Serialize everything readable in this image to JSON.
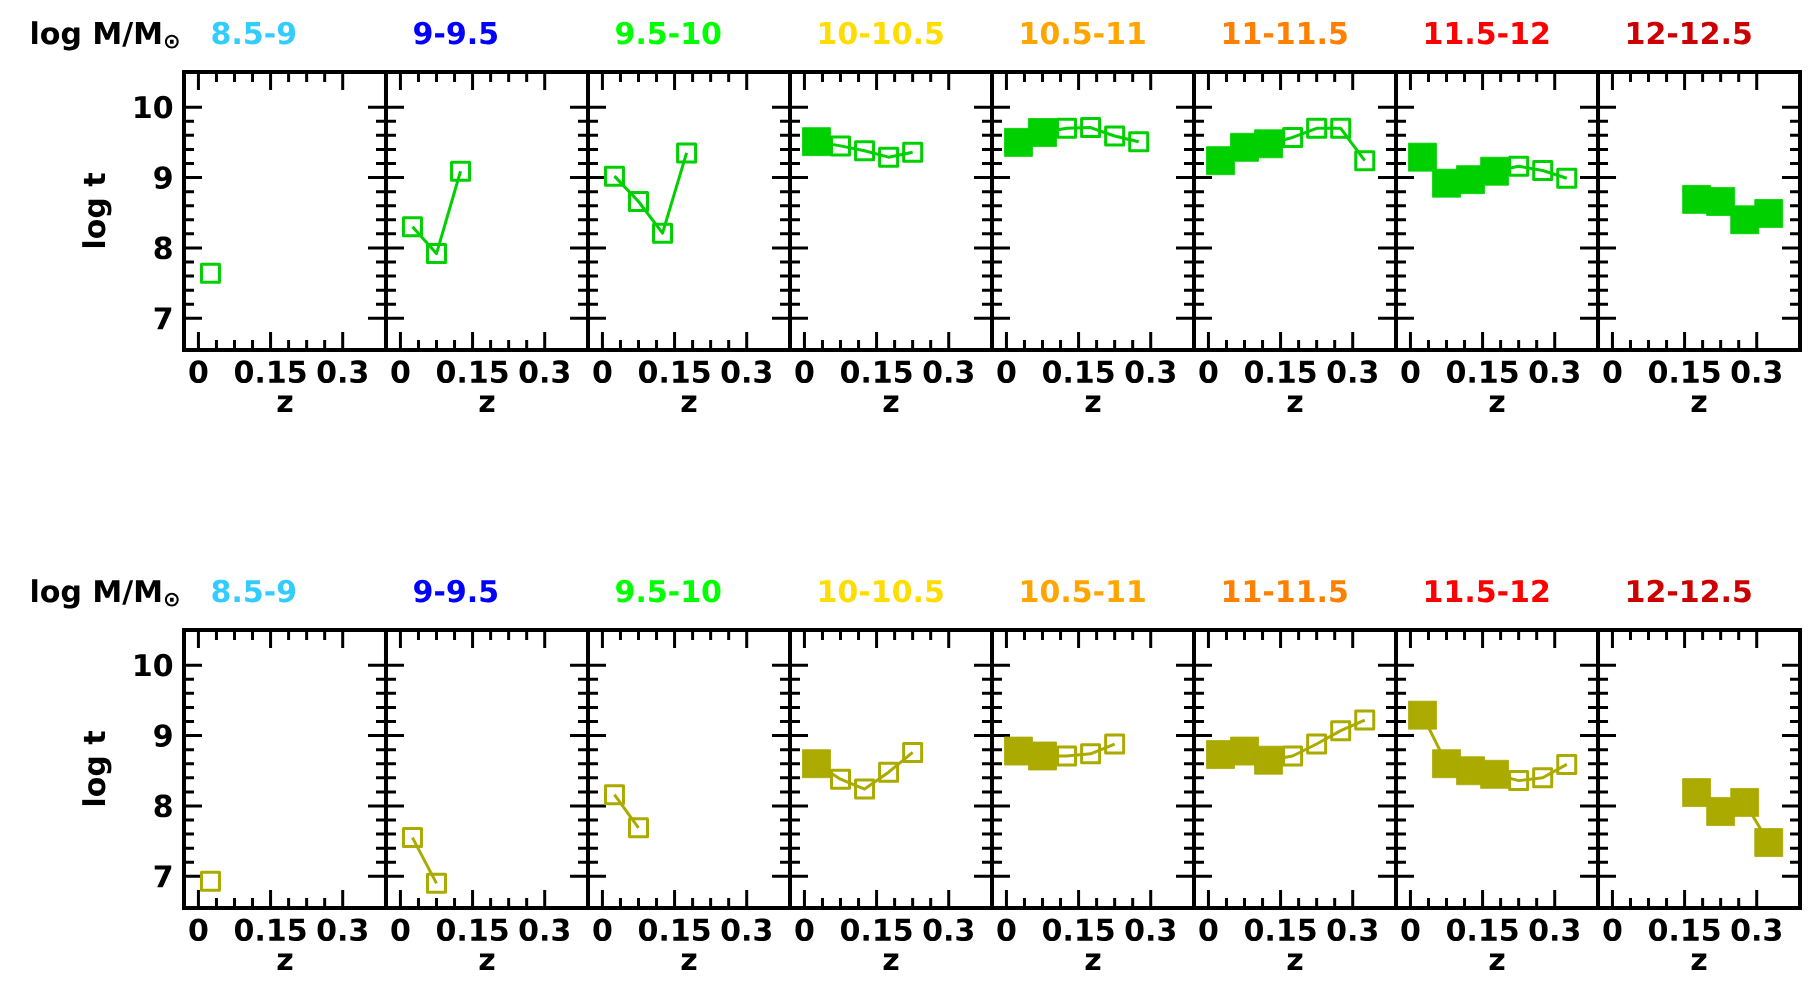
{
  "chart_data": [
    {
      "type": "line",
      "title": "8.5-9",
      "xlabel": "z",
      "ylabel": "log t",
      "annotations": [
        "log M/M$_{⊙}$"
      ],
      "xlim": [
        -0.03,
        0.39
      ],
      "ylim": [
        6.55,
        10.5
      ],
      "xticks": [
        0,
        0.15,
        0.3
      ],
      "yticks": [
        7,
        8,
        9,
        10
      ],
      "series": [
        {
          "marker": "square",
          "color": "#00d000",
          "x": [
            0.025
          ],
          "values": [
            7.64
          ]
        }
      ]
    },
    {
      "type": "line",
      "title": "9-9.5",
      "xlabel": "z",
      "xlim": [
        -0.03,
        0.39
      ],
      "ylim": [
        6.55,
        10.5
      ],
      "xticks": [
        0,
        0.15,
        0.3
      ],
      "yticks": [
        7,
        8,
        9,
        10
      ],
      "tick_labels": "x",
      "series": [
        {
          "marker": "square",
          "color": "#00d000",
          "x": [
            0.025,
            0.075,
            0.125
          ],
          "values": [
            8.3,
            7.92,
            9.09
          ]
        }
      ]
    },
    {
      "type": "line",
      "title": "9.5-10",
      "xlabel": "z",
      "xlim": [
        -0.03,
        0.39
      ],
      "ylim": [
        6.55,
        10.5
      ],
      "xticks": [
        0,
        0.15,
        0.3
      ],
      "yticks": [
        7,
        8,
        9,
        10
      ],
      "tick_labels": "x",
      "series": [
        {
          "marker": "square",
          "color": "#00d000",
          "x": [
            0.025,
            0.075,
            0.125,
            0.175
          ],
          "values": [
            9.02,
            8.66,
            8.21,
            9.35
          ]
        }
      ]
    },
    {
      "type": "line",
      "title": "10-10.5",
      "xlabel": "z",
      "xlim": [
        -0.03,
        0.39
      ],
      "ylim": [
        6.55,
        10.5
      ],
      "xticks": [
        0,
        0.15,
        0.3
      ],
      "yticks": [
        7,
        8,
        9,
        10
      ],
      "tick_labels": "x",
      "series": [
        {
          "marker": "square",
          "color": "#00d000",
          "x": [
            0.025,
            0.075,
            0.125,
            0.175,
            0.225
          ],
          "values": [
            9.51,
            9.45,
            9.38,
            9.29,
            9.36
          ]
        },
        {
          "type": "scatter",
          "marker": "square",
          "color": "#00d000",
          "x": [
            0.025
          ],
          "values": [
            9.51
          ]
        }
      ]
    },
    {
      "type": "line",
      "title": "10.5-11",
      "xlabel": "z",
      "xlim": [
        -0.03,
        0.39
      ],
      "ylim": [
        6.55,
        10.5
      ],
      "xticks": [
        0,
        0.15,
        0.3
      ],
      "yticks": [
        7,
        8,
        9,
        10
      ],
      "tick_labels": "x",
      "series": [
        {
          "marker": "square",
          "color": "#00d000",
          "x": [
            0.025,
            0.075,
            0.125,
            0.175,
            0.225,
            0.275
          ],
          "values": [
            9.5,
            9.64,
            9.7,
            9.71,
            9.59,
            9.51
          ]
        },
        {
          "type": "scatter",
          "marker": "square",
          "color": "#00d000",
          "x": [
            0.025,
            0.075
          ],
          "values": [
            9.5,
            9.64
          ]
        }
      ]
    },
    {
      "type": "line",
      "title": "11-11.5",
      "xlabel": "z",
      "xlim": [
        -0.03,
        0.39
      ],
      "ylim": [
        6.55,
        10.5
      ],
      "xticks": [
        0,
        0.15,
        0.3
      ],
      "yticks": [
        7,
        8,
        9,
        10
      ],
      "tick_labels": "x",
      "series": [
        {
          "marker": "square",
          "color": "#00d000",
          "x": [
            0.025,
            0.075,
            0.125,
            0.175,
            0.225,
            0.275,
            0.325
          ],
          "values": [
            9.24,
            9.43,
            9.48,
            9.57,
            9.7,
            9.7,
            9.24
          ]
        },
        {
          "type": "scatter",
          "marker": "square",
          "color": "#00d000",
          "x": [
            0.025,
            0.075,
            0.125
          ],
          "values": [
            9.24,
            9.43,
            9.48
          ]
        }
      ]
    },
    {
      "type": "line",
      "title": "11.5-12",
      "xlabel": "z",
      "xlim": [
        -0.03,
        0.39
      ],
      "ylim": [
        6.55,
        10.5
      ],
      "xticks": [
        0,
        0.15,
        0.3
      ],
      "yticks": [
        7,
        8,
        9,
        10
      ],
      "tick_labels": "x",
      "series": [
        {
          "marker": "square",
          "color": "#00d000",
          "x": [
            0.025,
            0.075,
            0.125,
            0.175,
            0.225,
            0.275,
            0.325
          ],
          "values": [
            9.29,
            8.92,
            8.97,
            9.09,
            9.16,
            9.1,
            8.99
          ]
        },
        {
          "type": "scatter",
          "marker": "square",
          "color": "#00d000",
          "x": [
            0.025,
            0.075,
            0.125,
            0.175
          ],
          "values": [
            9.29,
            8.92,
            8.97,
            9.09
          ]
        }
      ]
    },
    {
      "type": "line",
      "title": "12-12.5",
      "xlabel": "z",
      "xlim": [
        -0.03,
        0.39
      ],
      "ylim": [
        6.55,
        10.5
      ],
      "xticks": [
        0,
        0.15,
        0.3
      ],
      "yticks": [
        7,
        8,
        9,
        10
      ],
      "tick_labels": "x",
      "series": [
        {
          "type": "scatter",
          "marker": "square",
          "color": "#00d000",
          "x": [
            0.175,
            0.225,
            0.275,
            0.325
          ],
          "values": [
            8.69,
            8.66,
            8.4,
            8.49
          ]
        }
      ]
    },
    {
      "type": "line",
      "title": "8.5-9",
      "xlabel": "z",
      "ylabel": "log t",
      "annotations": [
        "log M/M$_{⊙}$"
      ],
      "xlim": [
        -0.03,
        0.39
      ],
      "ylim": [
        6.55,
        10.5
      ],
      "xticks": [
        0,
        0.15,
        0.3
      ],
      "yticks": [
        7,
        8,
        9,
        10
      ],
      "series": [
        {
          "marker": "square",
          "color": "#aaaa00",
          "x": [
            0.025
          ],
          "values": [
            6.93
          ]
        }
      ]
    },
    {
      "type": "line",
      "title": "9-9.5",
      "xlabel": "z",
      "xlim": [
        -0.03,
        0.39
      ],
      "ylim": [
        6.55,
        10.5
      ],
      "xticks": [
        0,
        0.15,
        0.3
      ],
      "yticks": [
        7,
        8,
        9,
        10
      ],
      "tick_labels": "x",
      "series": [
        {
          "marker": "square",
          "color": "#aaaa00",
          "x": [
            0.025,
            0.075
          ],
          "values": [
            7.55,
            6.9
          ]
        }
      ]
    },
    {
      "type": "line",
      "title": "9.5-10",
      "xlabel": "z",
      "xlim": [
        -0.03,
        0.39
      ],
      "ylim": [
        6.55,
        10.5
      ],
      "xticks": [
        0,
        0.15,
        0.3
      ],
      "yticks": [
        7,
        8,
        9,
        10
      ],
      "tick_labels": "x",
      "series": [
        {
          "marker": "square",
          "color": "#aaaa00",
          "x": [
            0.025,
            0.075
          ],
          "values": [
            8.16,
            7.69
          ]
        }
      ]
    },
    {
      "type": "line",
      "title": "10-10.5",
      "xlabel": "z",
      "xlim": [
        -0.03,
        0.39
      ],
      "ylim": [
        6.55,
        10.5
      ],
      "xticks": [
        0,
        0.15,
        0.3
      ],
      "yticks": [
        7,
        8,
        9,
        10
      ],
      "tick_labels": "x",
      "series": [
        {
          "marker": "square",
          "color": "#aaaa00",
          "x": [
            0.025,
            0.075,
            0.125,
            0.175,
            0.225
          ],
          "values": [
            8.6,
            8.38,
            8.24,
            8.48,
            8.76
          ]
        },
        {
          "type": "scatter",
          "marker": "square",
          "color": "#aaaa00",
          "x": [
            0.025
          ],
          "values": [
            8.6
          ]
        }
      ]
    },
    {
      "type": "line",
      "title": "10.5-11",
      "xlabel": "z",
      "xlim": [
        -0.03,
        0.39
      ],
      "ylim": [
        6.55,
        10.5
      ],
      "xticks": [
        0,
        0.15,
        0.3
      ],
      "yticks": [
        7,
        8,
        9,
        10
      ],
      "tick_labels": "x",
      "series": [
        {
          "marker": "square",
          "color": "#aaaa00",
          "x": [
            0.025,
            0.075,
            0.125,
            0.175,
            0.225
          ],
          "values": [
            8.78,
            8.71,
            8.71,
            8.74,
            8.88
          ]
        },
        {
          "type": "scatter",
          "marker": "square",
          "color": "#aaaa00",
          "x": [
            0.025,
            0.075
          ],
          "values": [
            8.78,
            8.71
          ]
        }
      ]
    },
    {
      "type": "line",
      "title": "11-11.5",
      "xlabel": "z",
      "xlim": [
        -0.03,
        0.39
      ],
      "ylim": [
        6.55,
        10.5
      ],
      "xticks": [
        0,
        0.15,
        0.3
      ],
      "yticks": [
        7,
        8,
        9,
        10
      ],
      "tick_labels": "x",
      "series": [
        {
          "marker": "square",
          "color": "#aaaa00",
          "x": [
            0.025,
            0.075,
            0.125,
            0.175,
            0.225,
            0.275,
            0.325
          ],
          "values": [
            8.73,
            8.78,
            8.65,
            8.71,
            8.88,
            9.07,
            9.22
          ]
        },
        {
          "type": "scatter",
          "marker": "square",
          "color": "#aaaa00",
          "x": [
            0.025,
            0.075,
            0.125
          ],
          "values": [
            8.73,
            8.78,
            8.65
          ]
        }
      ]
    },
    {
      "type": "line",
      "title": "11.5-12",
      "xlabel": "z",
      "xlim": [
        -0.03,
        0.39
      ],
      "ylim": [
        6.55,
        10.5
      ],
      "xticks": [
        0,
        0.15,
        0.3
      ],
      "yticks": [
        7,
        8,
        9,
        10
      ],
      "tick_labels": "x",
      "series": [
        {
          "marker": "square",
          "color": "#aaaa00",
          "x": [
            0.025,
            0.075,
            0.125,
            0.175,
            0.225,
            0.275,
            0.325
          ],
          "values": [
            9.29,
            8.6,
            8.5,
            8.45,
            8.36,
            8.4,
            8.59
          ]
        },
        {
          "type": "scatter",
          "marker": "square",
          "color": "#aaaa00",
          "x": [
            0.025,
            0.075,
            0.125,
            0.175
          ],
          "values": [
            9.29,
            8.6,
            8.5,
            8.45
          ]
        }
      ]
    },
    {
      "type": "line",
      "title": "12-12.5",
      "xlabel": "z",
      "xlim": [
        -0.03,
        0.39
      ],
      "ylim": [
        6.55,
        10.5
      ],
      "xticks": [
        0,
        0.15,
        0.3
      ],
      "yticks": [
        7,
        8,
        9,
        10
      ],
      "tick_labels": "x",
      "series": [
        {
          "marker": "none",
          "color": "#aaaa00",
          "x": [
            0.175,
            0.225,
            0.275,
            0.325
          ],
          "values": [
            8.19,
            7.92,
            8.05,
            7.48
          ]
        },
        {
          "type": "scatter",
          "marker": "square",
          "color": "#aaaa00",
          "x": [
            0.175,
            0.225,
            0.275,
            0.325
          ],
          "values": [
            8.19,
            7.92,
            8.05,
            7.48
          ]
        }
      ]
    }
  ]
}
